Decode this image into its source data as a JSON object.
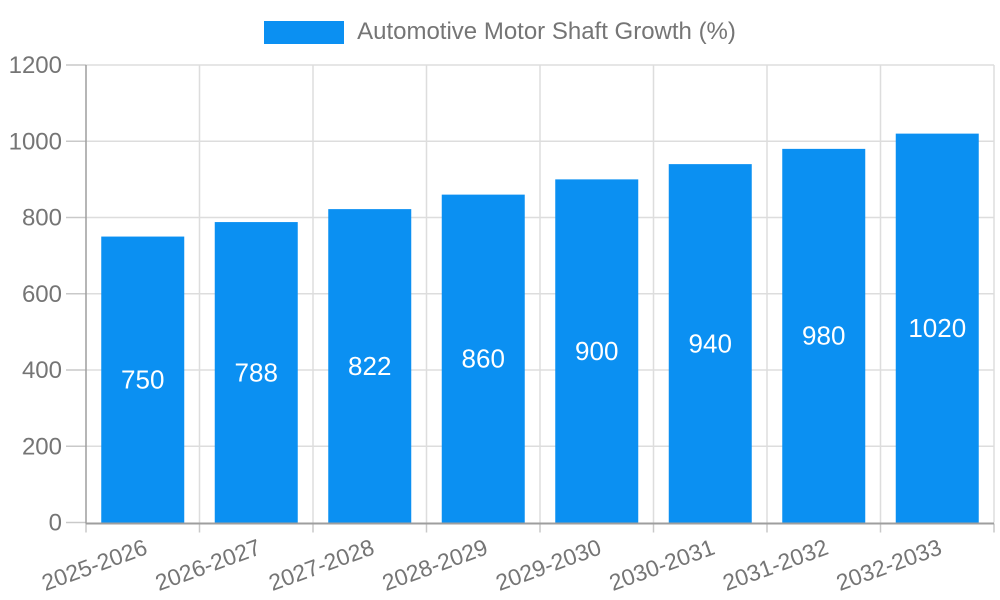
{
  "chart_data": {
    "type": "bar",
    "title": "",
    "series_name": "Automotive Motor Shaft Growth (%)",
    "categories": [
      "2025-2026",
      "2026-2027",
      "2027-2028",
      "2028-2029",
      "2029-2030",
      "2030-2031",
      "2031-2032",
      "2032-2033"
    ],
    "values": [
      750,
      788,
      822,
      860,
      900,
      940,
      980,
      1020
    ],
    "xlabel": "",
    "ylabel": "",
    "ylim": [
      0,
      1200
    ],
    "yticks": [
      0,
      200,
      400,
      600,
      800,
      1000,
      1200
    ],
    "grid": true,
    "legend_position": "top",
    "value_label_position": "inside-center",
    "x_label_rotation_deg": -20,
    "colors": {
      "bar": "#0B90F2",
      "value_label": "#FFFFFF",
      "axis_text": "#757575",
      "legend_text": "#757575",
      "grid_line": "#DDDDDD",
      "tick_line": "#C9C9C9",
      "axis_line": "#9E9E9E",
      "background": "#FFFFFF"
    }
  }
}
